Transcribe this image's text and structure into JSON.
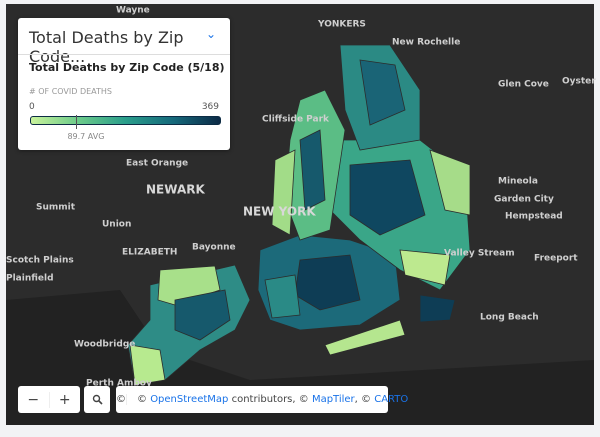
{
  "legend": {
    "title": "Total Deaths by Zip Code...",
    "subtitle": "Total Deaths by Zip Code (5/18)",
    "measure": "# OF COVID DEATHS",
    "min": 0,
    "max": 369,
    "avg": {
      "value": 89.7,
      "label": "89.7 AVG"
    }
  },
  "labels": [
    "Wayne",
    "YONKERS",
    "New Rochelle",
    "Glen Cove",
    "Oyster",
    "Cliffside Park",
    "East Orange",
    "NEWARK",
    "Summit",
    "Union",
    "Mineola",
    "Garden City",
    "Hempstead",
    "NEW YORK",
    "ELIZABETH",
    "Bayonne",
    "Scotch Plains",
    "Plainfield",
    "Valley Stream",
    "Freeport",
    "Long Beach",
    "Woodbridge",
    "Perth Amboy"
  ],
  "controls": {
    "zoom_out": "−",
    "zoom_in": "+",
    "info": "©"
  },
  "attribution": [
    "©",
    "OpenStreetMap",
    "contributors, ©",
    "MapTiler",
    ", ©",
    "CARTO"
  ]
}
